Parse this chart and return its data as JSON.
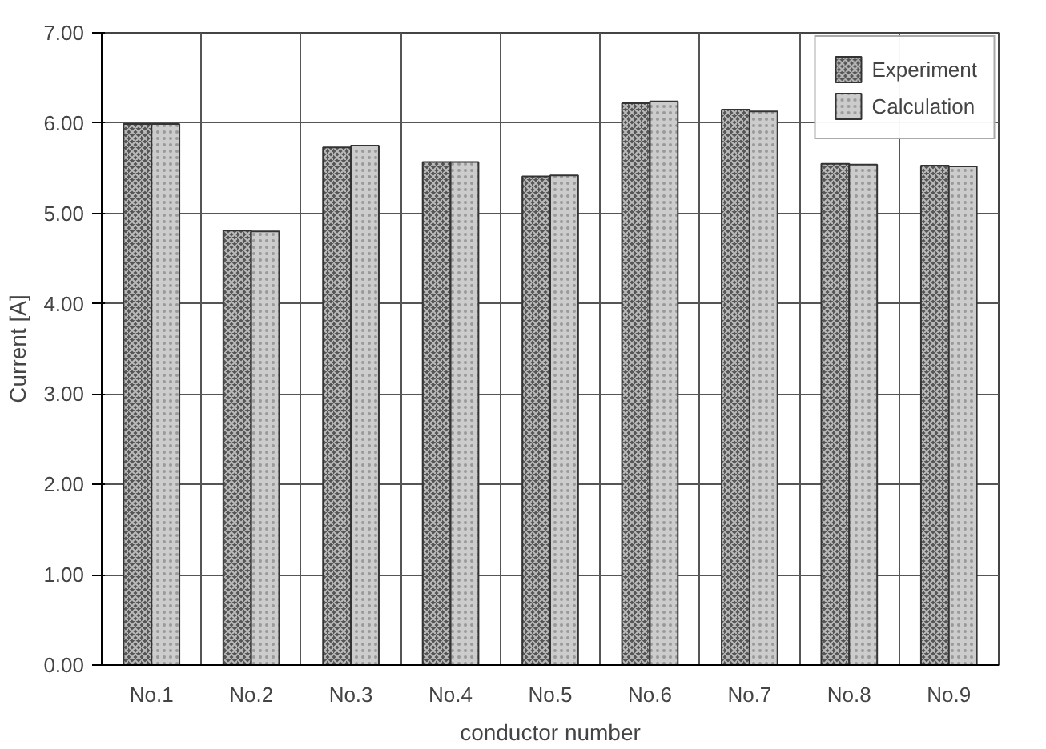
{
  "chart_data": {
    "type": "bar",
    "xlabel": "conductor number",
    "ylabel": "Current [A]",
    "categories": [
      "No.1",
      "No.2",
      "No.3",
      "No.4",
      "No.5",
      "No.6",
      "No.7",
      "No.8",
      "No.9"
    ],
    "series": [
      {
        "name": "Experiment",
        "color": "#555555",
        "values": [
          5.99,
          4.81,
          5.73,
          5.57,
          5.41,
          6.22,
          6.15,
          5.55,
          5.53
        ]
      },
      {
        "name": "Calculation",
        "color": "#cccccc",
        "values": [
          5.99,
          4.8,
          5.75,
          5.57,
          5.42,
          6.24,
          6.13,
          5.54,
          5.52
        ]
      }
    ],
    "ylim": [
      0,
      7
    ],
    "yticks": [
      {
        "value": 0,
        "label": "0.00"
      },
      {
        "value": 1,
        "label": "1.00"
      },
      {
        "value": 2,
        "label": "2.00"
      },
      {
        "value": 3,
        "label": "3.00"
      },
      {
        "value": 4,
        "label": "4.00"
      },
      {
        "value": 5,
        "label": "5.00"
      },
      {
        "value": 6,
        "label": "6.00"
      },
      {
        "value": 7,
        "label": "7.00"
      }
    ],
    "grid": true,
    "legend": "top right"
  }
}
